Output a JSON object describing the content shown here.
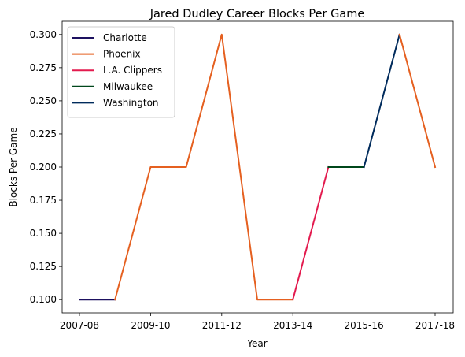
{
  "chart_data": {
    "type": "line",
    "title": "Jared Dudley Career Blocks Per Game",
    "xlabel": "Year",
    "ylabel": "Blocks Per Game",
    "x_ticks": [
      "2007-08",
      "2009-10",
      "2011-12",
      "2013-14",
      "2015-16",
      "2017-18"
    ],
    "y_ticks": [
      "0.100",
      "0.125",
      "0.150",
      "0.175",
      "0.200",
      "0.225",
      "0.250",
      "0.275",
      "0.300"
    ],
    "ylim": [
      0.09,
      0.31
    ],
    "grid": false,
    "legend_position": "top-left",
    "series": [
      {
        "name": "Charlotte",
        "color": "#1d1160",
        "x": [
          "2007-08",
          "2008-09"
        ],
        "y": [
          0.1,
          0.1
        ]
      },
      {
        "name": "Phoenix",
        "color": "#e56020",
        "x": [
          "2008-09",
          "2009-10",
          "2010-11",
          "2011-12",
          "2012-13",
          "2013-14"
        ],
        "y": [
          0.1,
          0.2,
          0.2,
          0.3,
          0.1,
          0.1
        ]
      },
      {
        "name": "L.A. Clippers",
        "color": "#e31a4e",
        "x": [
          "2013-14",
          "2014-15"
        ],
        "y": [
          0.1,
          0.2
        ]
      },
      {
        "name": "Milwaukee",
        "color": "#00471b",
        "x": [
          "2014-15",
          "2015-16"
        ],
        "y": [
          0.2,
          0.2
        ]
      },
      {
        "name": "Washington",
        "color": "#002b5c",
        "x": [
          "2015-16",
          "2016-17"
        ],
        "y": [
          0.2,
          0.3
        ]
      },
      {
        "name": "Phoenix",
        "color": "#e56020",
        "x": [
          "2016-17",
          "2017-18"
        ],
        "y": [
          0.3,
          0.2
        ]
      }
    ],
    "legend_entries": [
      "Charlotte",
      "Phoenix",
      "L.A. Clippers",
      "Milwaukee",
      "Washington"
    ],
    "legend_colors": [
      "#1d1160",
      "#e56020",
      "#e31a4e",
      "#00471b",
      "#002b5c"
    ]
  }
}
